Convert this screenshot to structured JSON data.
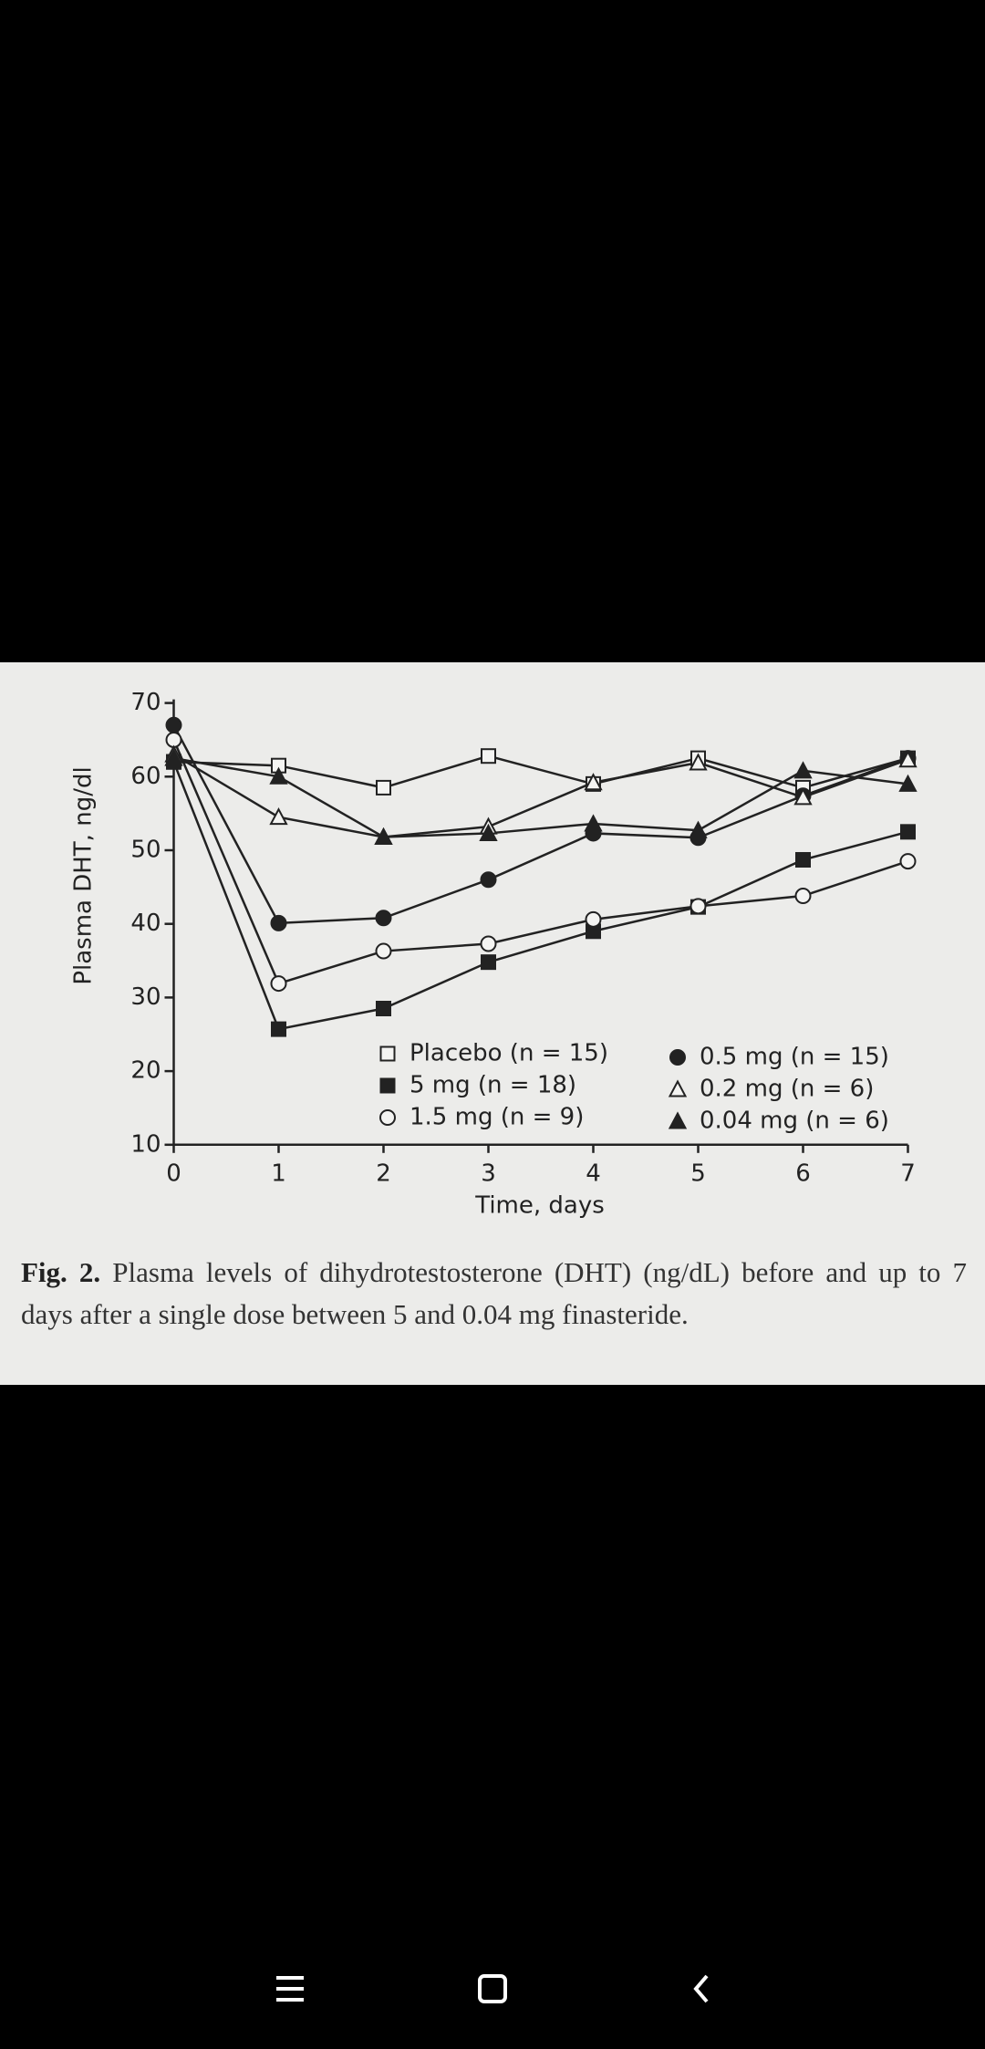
{
  "chart_data": {
    "type": "line",
    "ylabel": "Plasma DHT, ng/dl",
    "xlabel": "Time, days",
    "x": [
      0,
      1,
      2,
      3,
      4,
      5,
      6,
      7
    ],
    "xlim": [
      0,
      7
    ],
    "xticks": [
      0,
      1,
      2,
      3,
      4,
      5,
      6,
      7
    ],
    "ylim": [
      10,
      70
    ],
    "yticks": [
      10,
      20,
      30,
      40,
      50,
      60,
      70
    ],
    "grid": false,
    "series": [
      {
        "name": "Placebo (n = 15)",
        "color": "#222222",
        "marker": "square",
        "filled": false,
        "values": [
          62,
          61.5,
          58.5,
          62.8,
          59,
          62.5,
          58.5,
          62.5
        ]
      },
      {
        "name": "5 mg (n = 18)",
        "color": "#222222",
        "marker": "square",
        "filled": true,
        "values": [
          62,
          25.7,
          28.5,
          34.8,
          39,
          42.3,
          48.7,
          52.5
        ]
      },
      {
        "name": "1.5 mg (n = 9)",
        "color": "#222222",
        "marker": "circle",
        "filled": false,
        "values": [
          65,
          31.9,
          36.3,
          37.3,
          40.6,
          42.4,
          43.8,
          48.5
        ]
      },
      {
        "name": "0.5 mg (n = 15)",
        "color": "#222222",
        "marker": "circle",
        "filled": true,
        "values": [
          67,
          40.1,
          40.8,
          46,
          52.3,
          51.7,
          57.4,
          62.5
        ]
      },
      {
        "name": "0.2 mg (n = 6)",
        "color": "#222222",
        "marker": "triangle",
        "filled": false,
        "values": [
          63,
          54.5,
          51.8,
          53.2,
          59.2,
          61.9,
          57.2,
          62.3
        ]
      },
      {
        "name": "0.04 mg (n = 6)",
        "color": "#222222",
        "marker": "triangle",
        "filled": true,
        "values": [
          62.5,
          60,
          51.8,
          52.3,
          53.6,
          52.7,
          60.8,
          59
        ]
      }
    ]
  },
  "caption": {
    "label": "Fig. 2.",
    "text": "Plasma levels of dihydrotestosterone (DHT) (ng/dL) before and up to 7 days after a single dose between 5 and 0.04 mg finasteride."
  }
}
